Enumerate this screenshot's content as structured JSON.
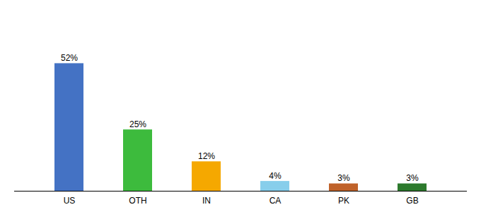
{
  "chart_data": {
    "type": "bar",
    "categories": [
      "US",
      "OTH",
      "IN",
      "CA",
      "PK",
      "GB"
    ],
    "values": [
      52,
      25,
      12,
      4,
      3,
      3
    ],
    "value_labels": [
      "52%",
      "25%",
      "12%",
      "4%",
      "3%",
      "3%"
    ],
    "colors": [
      "#4472c4",
      "#3dbb3d",
      "#f5a800",
      "#87ceeb",
      "#c0622a",
      "#2d7a2d"
    ],
    "data_labels": true,
    "ylim": [
      0,
      72
    ],
    "tick_labels": "x"
  }
}
